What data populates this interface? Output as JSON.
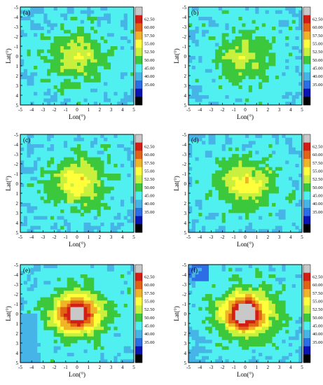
{
  "chart_data": [
    {
      "type": "heatmap",
      "panel_label": "(a)",
      "xlabel": "Lon(°)",
      "ylabel": "Lat(°)",
      "xlim": [
        -5,
        5
      ],
      "ylim": [
        5,
        -5
      ],
      "x_ticks": [
        "-5",
        "-4",
        "-3",
        "-2",
        "-1",
        "0",
        "1",
        "2",
        "3",
        "4",
        "5"
      ],
      "y_ticks": [
        "-5",
        "-4",
        "-3",
        "-2",
        "-1",
        "0",
        "1",
        "2",
        "3",
        "4",
        "5"
      ],
      "colorbar_levels": [
        "35.00",
        "40.00",
        "45.00",
        "50.00",
        "52.50",
        "55.00",
        "57.50",
        "60.00",
        "62.50"
      ],
      "center_value_estimate": 52.5,
      "peak_value_estimate": 55.0,
      "background_value": 50.0
    },
    {
      "type": "heatmap",
      "panel_label": "(b)",
      "xlabel": "Lon(°)",
      "ylabel": "Lat(°)",
      "xlim": [
        -5,
        5
      ],
      "ylim": [
        5,
        -5
      ],
      "x_ticks": [
        "-5",
        "-4",
        "-3",
        "-2",
        "-1",
        "0",
        "1",
        "2",
        "3",
        "4",
        "5"
      ],
      "y_ticks": [
        "-5",
        "-4",
        "-3",
        "-2",
        "-1",
        "0",
        "1",
        "2",
        "3",
        "4",
        "5"
      ],
      "colorbar_levels": [
        "35.00",
        "40.00",
        "45.00",
        "50.00",
        "52.50",
        "55.00",
        "57.50",
        "60.00",
        "62.50"
      ],
      "center_value_estimate": 52.5,
      "peak_value_estimate": 55.0,
      "background_value": 50.0
    },
    {
      "type": "heatmap",
      "panel_label": "(c)",
      "xlabel": "Lon(°)",
      "ylabel": "Lat(°)",
      "xlim": [
        -5,
        5
      ],
      "ylim": [
        5,
        -5
      ],
      "x_ticks": [
        "-5",
        "-4",
        "-3",
        "-2",
        "-1",
        "0",
        "1",
        "2",
        "3",
        "4",
        "5"
      ],
      "y_ticks": [
        "-5",
        "-4",
        "-3",
        "-2",
        "-1",
        "0",
        "1",
        "2",
        "3",
        "4",
        "5"
      ],
      "colorbar_levels": [
        "35.00",
        "40.00",
        "45.00",
        "50.00",
        "52.50",
        "55.00",
        "57.50",
        "60.00",
        "62.50"
      ],
      "center_value_estimate": 55.0,
      "peak_value_estimate": 55.0,
      "background_value": 50.0
    },
    {
      "type": "heatmap",
      "panel_label": "(d)",
      "xlabel": "Lon(°)",
      "ylabel": "Lat(°)",
      "xlim": [
        -5,
        5
      ],
      "ylim": [
        5,
        -5
      ],
      "x_ticks": [
        "-5",
        "-4",
        "-3",
        "-2",
        "-1",
        "0",
        "1",
        "2",
        "3",
        "4",
        "5"
      ],
      "y_ticks": [
        "-5",
        "-4",
        "-3",
        "-2",
        "-1",
        "0",
        "1",
        "2",
        "3",
        "4",
        "5"
      ],
      "colorbar_levels": [
        "35.00",
        "40.00",
        "45.00",
        "50.00",
        "52.50",
        "55.00",
        "57.50",
        "60.00",
        "62.50"
      ],
      "center_value_estimate": 55.0,
      "peak_value_estimate": 57.5,
      "background_value": 50.0
    },
    {
      "type": "heatmap",
      "panel_label": "(e)",
      "xlabel": "Lon(°)",
      "ylabel": "Lat(°)",
      "xlim": [
        -5,
        5
      ],
      "ylim": [
        5,
        -5
      ],
      "x_ticks": [
        "-5",
        "-4",
        "-3",
        "-2",
        "-1",
        "0",
        "1",
        "2",
        "3",
        "4",
        "5"
      ],
      "y_ticks": [
        "-5",
        "-4",
        "-3",
        "-2",
        "-1",
        "0",
        "1",
        "2",
        "3",
        "4",
        "5"
      ],
      "colorbar_levels": [
        "35.00",
        "40.00",
        "45.00",
        "50.00",
        "52.50",
        "55.00",
        "57.50",
        "60.00",
        "62.50"
      ],
      "center_value_estimate": 62.5,
      "peak_value_estimate": 62.5,
      "background_value": 50.0
    },
    {
      "type": "heatmap",
      "panel_label": "(f)",
      "xlabel": "Lon(°)",
      "ylabel": "Lat(°)",
      "xlim": [
        -5,
        5
      ],
      "ylim": [
        5,
        -5
      ],
      "x_ticks": [
        "-5",
        "-4",
        "-3",
        "-2",
        "-1",
        "0",
        "1",
        "2",
        "3",
        "4",
        "5"
      ],
      "y_ticks": [
        "-5",
        "-4",
        "-3",
        "-2",
        "-1",
        "0",
        "1",
        "2",
        "3",
        "4",
        "5"
      ],
      "colorbar_levels": [
        "35.00",
        "40.00",
        "45.00",
        "50.00",
        "52.50",
        "55.00",
        "57.50",
        "60.00",
        "62.50"
      ],
      "center_value_estimate": 62.5,
      "peak_value_estimate": 65.0,
      "background_value": 50.0
    }
  ],
  "colors": {
    "palette": [
      "#000000",
      "#0a14b4",
      "#2d6ee6",
      "#46b4e6",
      "#50f0f0",
      "#3cc83c",
      "#c8f03c",
      "#ffff3c",
      "#f0b428",
      "#e16414",
      "#d21e14",
      "#c8c8c8"
    ],
    "background_cyan": "#50f0f0",
    "frame": "#000000"
  }
}
